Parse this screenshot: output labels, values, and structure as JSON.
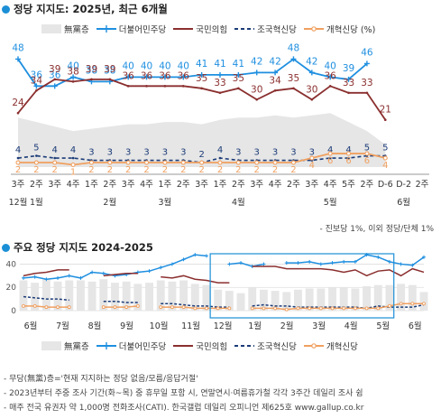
{
  "page": {
    "chart1_title": "정당 지지도: 2025년, 최근 6개월",
    "chart2_title": "주요 정당 지지도 2024-2025",
    "chart1_note": "- 진보당 1%, 이외 정당/단체 1%",
    "footnotes": [
      "- 무당(無黨)층='현재 지지하는 정당 없음/모름/응답거절'",
      "- 2023년부터 주중 조사 기간(화~목) 중 휴무일 포함 시, 연말연시·여름휴가철 각각 3주간 데일리 조사 쉼",
      "- 매주 전국 유권자 약 1,000명 전화조사(CATI). 한국갤럽 데일리 오피니언 제625호 www.gallup.co.kr"
    ],
    "legend": {
      "nonpartisan": "無黨층",
      "democratic": "더불어민주당",
      "ppp": "국민의힘",
      "rebuilding": "조국혁신당",
      "reform": "개혁신당 (%)",
      "reform2": "개혁신당"
    }
  },
  "colors": {
    "democratic": "#1f8fe0",
    "ppp": "#8b2f2f",
    "rebuilding": "#1c3c78",
    "reform": "#f0a060",
    "nonpartisan": "#e6e6e6",
    "title_bullet": "#1b8fd6"
  },
  "chart_data": [
    {
      "type": "line",
      "title": "정당 지지도: 2025년, 최근 6개월",
      "x_week_labels": [
        "3주",
        "2주",
        "3주",
        "4주",
        "1주",
        "2주",
        "3주",
        "4주",
        "1주",
        "2주",
        "3주",
        "1주",
        "2주",
        "3주",
        "4주",
        "2주",
        "3주",
        "4주",
        "5주",
        "2주",
        "D-6",
        "D-2",
        "2주"
      ],
      "x_month_labels": [
        {
          "index": 0,
          "label": "12월"
        },
        {
          "index": 1,
          "label": "1월"
        },
        {
          "index": 5,
          "label": "2월"
        },
        {
          "index": 8,
          "label": "3월"
        },
        {
          "index": 12,
          "label": "4월"
        },
        {
          "index": 17,
          "label": "5월"
        },
        {
          "index": 21,
          "label": "6월"
        }
      ],
      "series": [
        {
          "name": "더불어민주당",
          "key": "democratic",
          "values": [
            48,
            36,
            36,
            40,
            38,
            38,
            40,
            40,
            40,
            40,
            41,
            41,
            41,
            42,
            42,
            48,
            42,
            40,
            39,
            46,
            null,
            null,
            null
          ]
        },
        {
          "name": "국민의힘",
          "key": "ppp",
          "values": [
            24,
            34,
            39,
            38,
            39,
            39,
            36,
            36,
            36,
            36,
            35,
            33,
            35,
            30,
            34,
            35,
            30,
            36,
            33,
            33,
            21,
            null,
            null
          ]
        },
        {
          "name": "조국혁신당",
          "key": "rebuilding",
          "values": [
            4,
            5,
            4,
            4,
            3,
            3,
            3,
            3,
            3,
            3,
            2,
            4,
            3,
            3,
            3,
            3,
            3,
            4,
            4,
            5,
            5,
            null,
            null
          ]
        },
        {
          "name": "개혁신당",
          "key": "reform",
          "values": [
            2,
            2,
            2,
            1,
            2,
            2,
            2,
            2,
            2,
            2,
            2,
            2,
            2,
            2,
            2,
            2,
            4,
            6,
            6,
            6,
            4,
            null,
            null
          ]
        }
      ],
      "nonpartisan_area": [
        22,
        20,
        18,
        16,
        17,
        18,
        19,
        19,
        20,
        20,
        19,
        21,
        22,
        22,
        23,
        22,
        23,
        24,
        20,
        16,
        10
      ],
      "ylim": [
        0,
        55
      ]
    },
    {
      "type": "line",
      "title": "주요 정당 지지도 2024-2025",
      "x_month_labels": [
        "6월",
        "7월",
        "8월",
        "9월",
        "10월",
        "11월",
        "12월",
        "1월",
        "2월",
        "3월",
        "4월",
        "5월",
        "6월"
      ],
      "y_ticks": [
        0,
        20,
        40
      ],
      "ylim": [
        0,
        45
      ],
      "highlight": "12월–5월",
      "series": [
        {
          "name": "더불어민주당",
          "key": "democratic",
          "values": [
            28,
            29,
            27,
            28,
            30,
            28,
            33,
            32,
            30,
            31,
            33,
            34,
            37,
            40,
            44,
            48,
            47,
            null,
            40,
            41,
            38,
            40,
            null,
            41,
            41,
            42,
            40,
            41,
            42,
            42,
            48,
            46,
            42,
            40,
            39,
            46
          ]
        },
        {
          "name": "국민의힘",
          "key": "ppp",
          "values": [
            30,
            32,
            33,
            35,
            35,
            null,
            null,
            30,
            31,
            32,
            32,
            null,
            29,
            28,
            30,
            27,
            26,
            24,
            24,
            null,
            38,
            38,
            38,
            36,
            36,
            36,
            36,
            35,
            33,
            35,
            30,
            34,
            35,
            30,
            36,
            33
          ]
        },
        {
          "name": "조국혁신당",
          "key": "rebuilding",
          "values": [
            12,
            11,
            10,
            10,
            9,
            null,
            null,
            8,
            8,
            7,
            7,
            null,
            6,
            6,
            5,
            4,
            4,
            3,
            3,
            null,
            4,
            5,
            4,
            4,
            3,
            3,
            3,
            3,
            3,
            3,
            2,
            4,
            3,
            3,
            3,
            5
          ]
        },
        {
          "name": "개혁신당",
          "key": "reform",
          "values": [
            4,
            4,
            3,
            3,
            3,
            null,
            null,
            3,
            3,
            3,
            4,
            null,
            3,
            3,
            3,
            2,
            2,
            2,
            2,
            null,
            2,
            2,
            2,
            1,
            2,
            2,
            2,
            2,
            2,
            2,
            2,
            2,
            4,
            6,
            6,
            6
          ]
        }
      ],
      "nonpartisan_area": [
        26,
        24,
        27,
        25,
        26,
        26,
        25,
        27,
        24,
        25,
        23,
        24,
        26,
        25,
        26,
        23,
        22,
        18,
        17,
        15,
        20,
        18,
        17,
        16,
        18,
        19,
        19,
        20,
        20,
        19,
        21,
        22,
        22,
        23,
        22,
        16
      ]
    }
  ]
}
